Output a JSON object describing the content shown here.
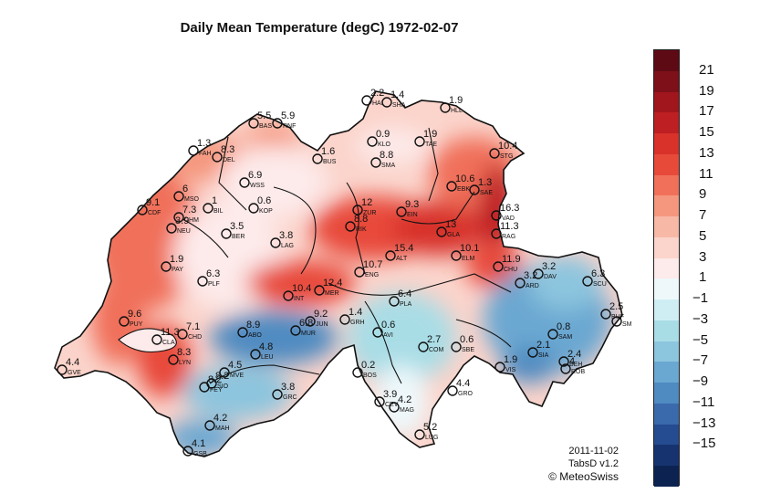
{
  "title": "Daily Mean Temperature (degC) 1972-02-07",
  "credits": {
    "date": "2011-11-02",
    "product": "TabsD v1.2",
    "copyright": "© MeteoSwiss"
  },
  "colorbar": {
    "labels": [
      "21",
      "19",
      "17",
      "15",
      "13",
      "11",
      "9",
      "7",
      "5",
      "3",
      "1",
      "−1",
      "−3",
      "−5",
      "−7",
      "−9",
      "−11",
      "−13",
      "−15"
    ],
    "colors": [
      "#5e0a14",
      "#7d1018",
      "#a0161c",
      "#bd1f22",
      "#d8322a",
      "#e84a3a",
      "#f0705a",
      "#f5977e",
      "#f8b8a6",
      "#fbd4cb",
      "#fdeaea",
      "#eef8fb",
      "#cfeef4",
      "#a9dde6",
      "#8cc5de",
      "#6aa7d1",
      "#4f8bc1",
      "#3a6aac",
      "#254b90",
      "#17336f",
      "#0c2352"
    ]
  },
  "stations": [
    {
      "code": "GVE",
      "value": "4.4"
    },
    {
      "code": "BAS",
      "value": "5.5"
    },
    {
      "code": "RNF",
      "value": "5.9"
    },
    {
      "code": "DEL",
      "value": "8.3"
    },
    {
      "code": "FAH",
      "value": "1.3"
    },
    {
      "code": "HAI",
      "value": "2.2"
    },
    {
      "code": "SHA",
      "value": "1.4"
    },
    {
      "code": "HLL",
      "value": "1.9"
    },
    {
      "code": "KLO",
      "value": "0.9"
    },
    {
      "code": "TAE",
      "value": "1.9"
    },
    {
      "code": "BUS",
      "value": "1.6"
    },
    {
      "code": "WSS",
      "value": "6.9"
    },
    {
      "code": "SMA",
      "value": "8.8"
    },
    {
      "code": "EBK",
      "value": "10.6"
    },
    {
      "code": "STG",
      "value": "10.4"
    },
    {
      "code": "SAE",
      "value": "1.3"
    },
    {
      "code": "VAD",
      "value": "16.3"
    },
    {
      "code": "MSO",
      "value": "6"
    },
    {
      "code": "CDF",
      "value": "9.1"
    },
    {
      "code": "CHM",
      "value": "7.3"
    },
    {
      "code": "NEU",
      "value": "3.9"
    },
    {
      "code": "BIL",
      "value": "1"
    },
    {
      "code": "KOP",
      "value": "0.6"
    },
    {
      "code": "ZUR",
      "value": "12"
    },
    {
      "code": "EIN",
      "value": "9.3"
    },
    {
      "code": "RIK",
      "value": "8.8"
    },
    {
      "code": "GLA",
      "value": "13"
    },
    {
      "code": "RAG",
      "value": "11.3"
    },
    {
      "code": "BER",
      "value": "3.5"
    },
    {
      "code": "LAG",
      "value": "3.8"
    },
    {
      "code": "PAY",
      "value": "1.9"
    },
    {
      "code": "PLF",
      "value": "6.3"
    },
    {
      "code": "ALT",
      "value": "15.4"
    },
    {
      "code": "ELM",
      "value": "10.1"
    },
    {
      "code": "ENG",
      "value": "10.7"
    },
    {
      "code": "CHU",
      "value": "11.9"
    },
    {
      "code": "DAV",
      "value": "3.2"
    },
    {
      "code": "ARD",
      "value": "3.2"
    },
    {
      "code": "SCU",
      "value": "6.3"
    },
    {
      "code": "INT",
      "value": "10.4"
    },
    {
      "code": "MER",
      "value": "12.4"
    },
    {
      "code": "PLA",
      "value": "6.4"
    },
    {
      "code": "GRH",
      "value": "1.4"
    },
    {
      "code": "BUF",
      "value": "2.5"
    },
    {
      "code": "SM",
      "value": ""
    },
    {
      "code": "PUY",
      "value": "9.6"
    },
    {
      "code": "CHD",
      "value": "7.1"
    },
    {
      "code": "ABO",
      "value": "8.9"
    },
    {
      "code": "MUR",
      "value": "6.8"
    },
    {
      "code": "JUN",
      "value": "9.2"
    },
    {
      "code": "AVI",
      "value": "0.6"
    },
    {
      "code": "SAM",
      "value": "0.8"
    },
    {
      "code": "CLA",
      "value": "11.3"
    },
    {
      "code": "LEU",
      "value": "4.8"
    },
    {
      "code": "COM",
      "value": "2.7"
    },
    {
      "code": "SBE",
      "value": "0.6"
    },
    {
      "code": "SIA",
      "value": "2.1"
    },
    {
      "code": "BEH",
      "value": "2.4"
    },
    {
      "code": "ROB",
      "value": "4"
    },
    {
      "code": "LYN",
      "value": "8.3"
    },
    {
      "code": "MVE",
      "value": "4.5"
    },
    {
      "code": "BOS",
      "value": "0.2"
    },
    {
      "code": "VIS",
      "value": "1.9"
    },
    {
      "code": "SIO",
      "value": "8.2"
    },
    {
      "code": "FEY",
      "value": "8.2"
    },
    {
      "code": "GRC",
      "value": "3.8"
    },
    {
      "code": "GRO",
      "value": "4.4"
    },
    {
      "code": "CEV",
      "value": "3.9"
    },
    {
      "code": "MAG",
      "value": "4.2"
    },
    {
      "code": "MAH",
      "value": "4.2"
    },
    {
      "code": "LUG",
      "value": "5.2"
    },
    {
      "code": "GSB",
      "value": "4.1"
    }
  ]
}
